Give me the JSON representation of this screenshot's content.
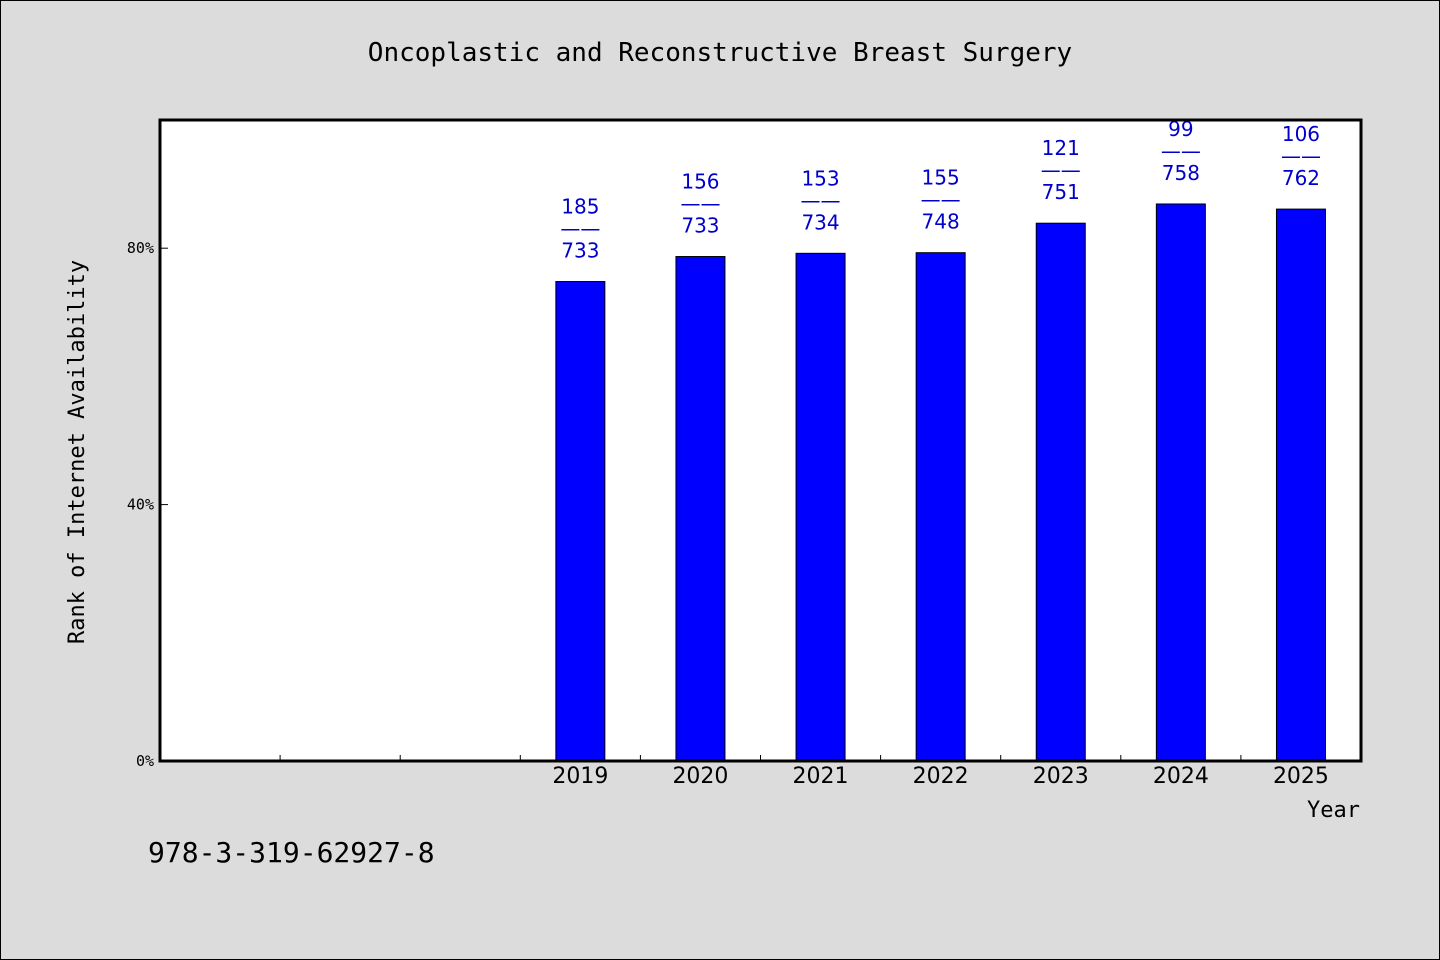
{
  "chart_data": {
    "type": "bar",
    "title": "Oncoplastic and Reconstructive Breast Surgery",
    "xlabel": "Year",
    "ylabel": "Rank of Internet Availability",
    "categories": [
      "",
      "",
      "",
      "2019",
      "2020",
      "2021",
      "2022",
      "2023",
      "2024",
      "2025"
    ],
    "values": [
      null,
      null,
      null,
      74.8,
      78.7,
      79.2,
      79.3,
      83.9,
      86.9,
      86.1
    ],
    "ylim": [
      0,
      100
    ],
    "yticks": [
      0,
      40,
      80
    ],
    "ytick_labels": [
      "0%",
      "40%",
      "80%"
    ],
    "data_labels": [
      null,
      null,
      null,
      {
        "rank": "185",
        "sep": "——",
        "total": "733"
      },
      {
        "rank": "156",
        "sep": "——",
        "total": "733"
      },
      {
        "rank": "153",
        "sep": "——",
        "total": "734"
      },
      {
        "rank": "155",
        "sep": "——",
        "total": "748"
      },
      {
        "rank": "121",
        "sep": "——",
        "total": "751"
      },
      {
        "rank": "99",
        "sep": "——",
        "total": "758"
      },
      {
        "rank": "106",
        "sep": "——",
        "total": "762"
      }
    ],
    "grid": false,
    "legend": "none",
    "bar_color": "#0000ff",
    "label_color": "#0000cc"
  },
  "footer": {
    "isbn": "978-3-319-62927-8"
  },
  "colors": {
    "background": "#dcdcdc",
    "plot_background": "#ffffff"
  }
}
